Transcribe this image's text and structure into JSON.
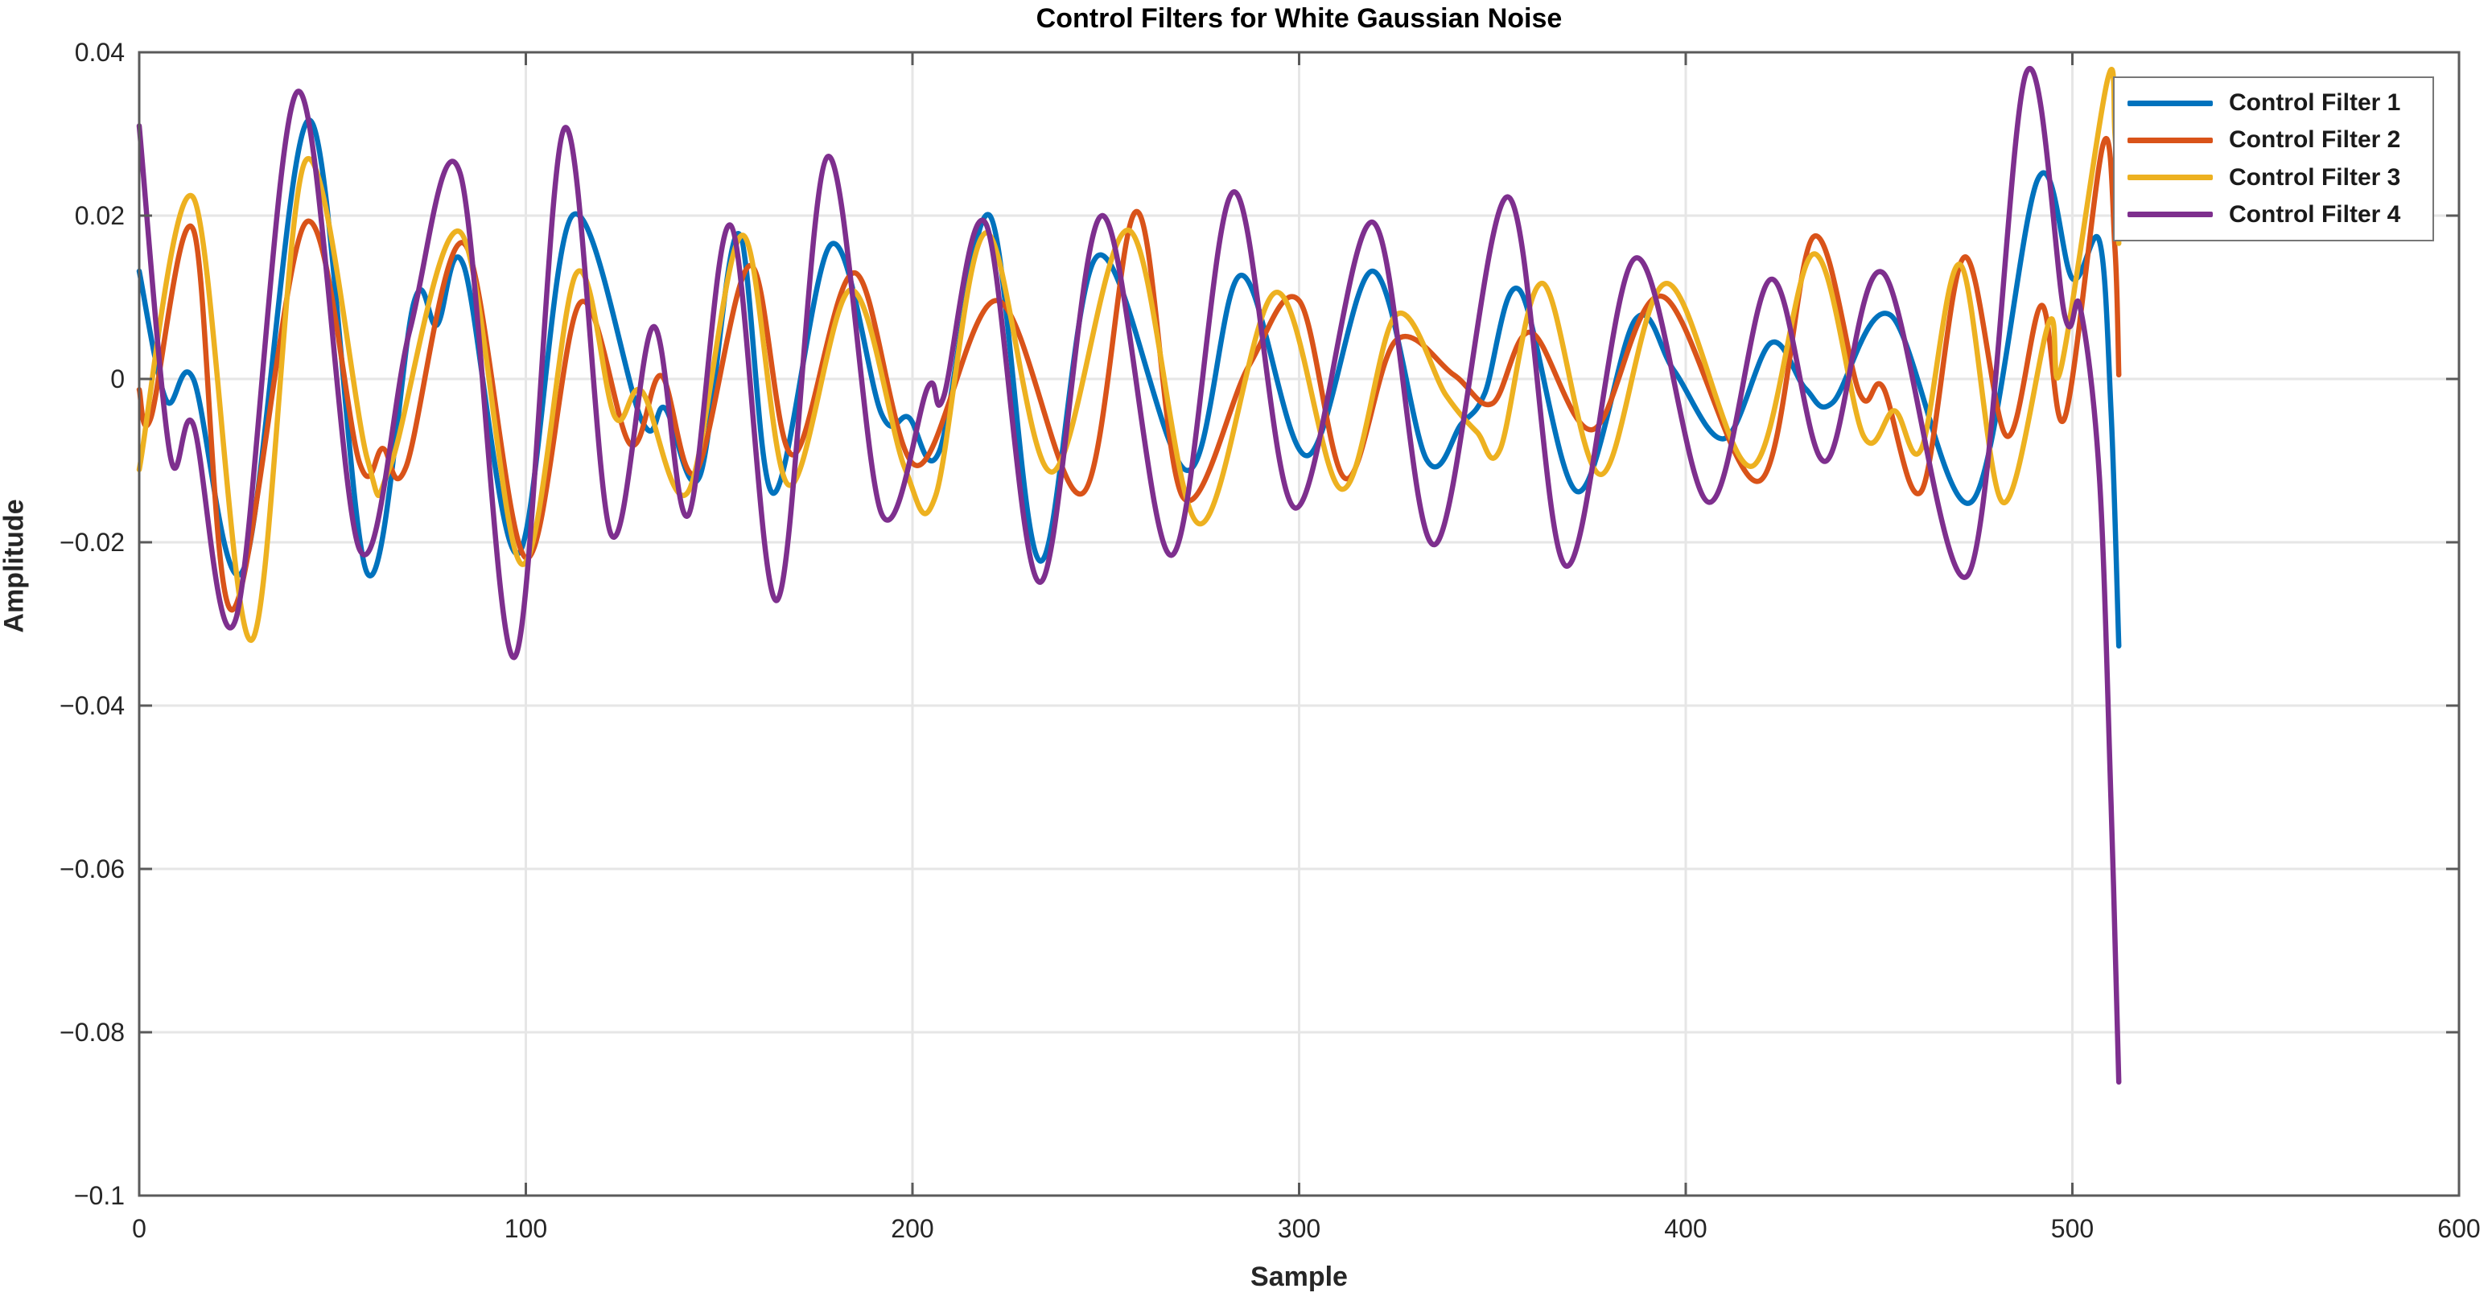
{
  "figure": {
    "title": "Control Filters for White Gaussian Noise",
    "xlabel": "Sample",
    "ylabel": "Amplitude"
  },
  "colors": {
    "series1": "#0072BD",
    "series2": "#D95319",
    "series3": "#EDB120",
    "series4": "#7E2F8E",
    "axis": "#5a5a5a",
    "grid": "#e6e6e6",
    "text": "#262626",
    "legend_border": "#777777",
    "background": "#ffffff"
  },
  "chart_data": {
    "type": "line",
    "title": "Control Filters for White Gaussian Noise",
    "xlabel": "Sample",
    "ylabel": "Amplitude",
    "xlim": [
      0,
      600
    ],
    "ylim": [
      -0.1,
      0.04
    ],
    "grid": true,
    "legend_position": "northeast",
    "x_ticks": [
      {
        "value": 0,
        "label": "0"
      },
      {
        "value": 100,
        "label": "100"
      },
      {
        "value": 200,
        "label": "200"
      },
      {
        "value": 300,
        "label": "300"
      },
      {
        "value": 400,
        "label": "400"
      },
      {
        "value": 500,
        "label": "500"
      },
      {
        "value": 600,
        "label": "600"
      }
    ],
    "y_ticks": [
      {
        "value": 0.04,
        "label": "0.04"
      },
      {
        "value": 0.02,
        "label": "0.02"
      },
      {
        "value": 0,
        "label": "0"
      },
      {
        "value": -0.02,
        "label": "−0.02"
      },
      {
        "value": -0.04,
        "label": "−0.04"
      },
      {
        "value": -0.06,
        "label": "−0.06"
      },
      {
        "value": -0.08,
        "label": "−0.08"
      },
      {
        "value": -0.1,
        "label": "−0.1"
      }
    ],
    "series": [
      {
        "name": "Control Filter 1",
        "color": "#0072BD",
        "points": [
          [
            0,
            0.0132
          ],
          [
            7,
            -0.0026
          ],
          [
            14,
            0.0
          ],
          [
            27,
            -0.0233
          ],
          [
            44,
            0.0317
          ],
          [
            59,
            -0.0238
          ],
          [
            71,
            0.0093
          ],
          [
            77,
            0.0066
          ],
          [
            84,
            0.0138
          ],
          [
            98,
            -0.0214
          ],
          [
            112,
            0.02
          ],
          [
            130,
            -0.0051
          ],
          [
            136,
            -0.0036
          ],
          [
            145,
            -0.0119
          ],
          [
            155,
            0.0178
          ],
          [
            164,
            -0.014
          ],
          [
            179,
            0.0165
          ],
          [
            192,
            -0.0043
          ],
          [
            199,
            -0.0047
          ],
          [
            207,
            -0.0088
          ],
          [
            220,
            0.02
          ],
          [
            233,
            -0.0223
          ],
          [
            248,
            0.0151
          ],
          [
            271,
            -0.0112
          ],
          [
            285,
            0.0127
          ],
          [
            302,
            -0.0094
          ],
          [
            319,
            0.0132
          ],
          [
            333,
            -0.0099
          ],
          [
            342,
            -0.0055
          ],
          [
            348,
            -0.0018
          ],
          [
            357,
            0.0109
          ],
          [
            372,
            -0.0138
          ],
          [
            387,
            0.0073
          ],
          [
            397,
            0.001
          ],
          [
            410,
            -0.0073
          ],
          [
            422,
            0.0044
          ],
          [
            431,
            -0.0012
          ],
          [
            438,
            -0.0029
          ],
          [
            453,
            0.0078
          ],
          [
            474,
            -0.015
          ],
          [
            491,
            0.0244
          ],
          [
            500,
            0.0123
          ],
          [
            507,
            0.0169
          ],
          [
            510,
            -0.004
          ],
          [
            512,
            -0.0327
          ]
        ]
      },
      {
        "name": "Control Filter 2",
        "color": "#D95319",
        "points": [
          [
            0,
            -0.0013
          ],
          [
            3,
            -0.0048
          ],
          [
            14,
            0.0183
          ],
          [
            24,
            -0.0283
          ],
          [
            43,
            0.0191
          ],
          [
            57,
            -0.0103
          ],
          [
            63,
            -0.0085
          ],
          [
            69,
            -0.0108
          ],
          [
            84,
            0.0166
          ],
          [
            100,
            -0.0219
          ],
          [
            114,
            0.0093
          ],
          [
            127,
            -0.008
          ],
          [
            135,
            0.0004
          ],
          [
            144,
            -0.0114
          ],
          [
            158,
            0.0139
          ],
          [
            169,
            -0.0093
          ],
          [
            185,
            0.013
          ],
          [
            201,
            -0.0106
          ],
          [
            222,
            0.0096
          ],
          [
            244,
            -0.014
          ],
          [
            258,
            0.0205
          ],
          [
            270,
            -0.0145
          ],
          [
            287,
            0.0016
          ],
          [
            300,
            0.0096
          ],
          [
            312,
            -0.0122
          ],
          [
            325,
            0.0047
          ],
          [
            340,
            0.0005
          ],
          [
            350,
            -0.003
          ],
          [
            360,
            0.0057
          ],
          [
            376,
            -0.0062
          ],
          [
            394,
            0.0101
          ],
          [
            419,
            -0.0125
          ],
          [
            433,
            0.0174
          ],
          [
            445,
            -0.0018
          ],
          [
            451,
            -0.001
          ],
          [
            461,
            -0.0137
          ],
          [
            472,
            0.0149
          ],
          [
            483,
            -0.007
          ],
          [
            492,
            0.009
          ],
          [
            498,
            -0.0048
          ],
          [
            508,
            0.0288
          ],
          [
            511,
            0.016
          ],
          [
            512,
            0.0005
          ]
        ]
      },
      {
        "name": "Control Filter 3",
        "color": "#EDB120",
        "points": [
          [
            0,
            -0.0111
          ],
          [
            14,
            0.0222
          ],
          [
            29,
            -0.032
          ],
          [
            43,
            0.0267
          ],
          [
            59,
            -0.0098
          ],
          [
            65,
            -0.0106
          ],
          [
            83,
            0.018
          ],
          [
            99,
            -0.0227
          ],
          [
            113,
            0.0129
          ],
          [
            123,
            -0.0046
          ],
          [
            130,
            -0.0015
          ],
          [
            142,
            -0.0138
          ],
          [
            156,
            0.0176
          ],
          [
            168,
            -0.013
          ],
          [
            184,
            0.0109
          ],
          [
            198,
            -0.0109
          ],
          [
            206,
            -0.0143
          ],
          [
            219,
            0.0179
          ],
          [
            236,
            -0.0114
          ],
          [
            256,
            0.0182
          ],
          [
            274,
            -0.0177
          ],
          [
            294,
            0.0106
          ],
          [
            311,
            -0.0135
          ],
          [
            325,
            0.0078
          ],
          [
            338,
            -0.002
          ],
          [
            346,
            -0.0065
          ],
          [
            352,
            -0.0086
          ],
          [
            363,
            0.0117
          ],
          [
            378,
            -0.0117
          ],
          [
            395,
            0.0117
          ],
          [
            417,
            -0.0107
          ],
          [
            433,
            0.0153
          ],
          [
            446,
            -0.007
          ],
          [
            454,
            -0.0039
          ],
          [
            461,
            -0.0085
          ],
          [
            471,
            0.014
          ],
          [
            482,
            -0.0151
          ],
          [
            494,
            0.007
          ],
          [
            497,
            0.0012
          ],
          [
            509,
            0.0364
          ],
          [
            511,
            0.03
          ],
          [
            512,
            0.0166
          ]
        ]
      },
      {
        "name": "Control Filter 4",
        "color": "#7E2F8E",
        "points": [
          [
            0,
            0.031
          ],
          [
            8,
            -0.0093
          ],
          [
            14,
            -0.0056
          ],
          [
            25,
            -0.0294
          ],
          [
            41,
            0.0352
          ],
          [
            57,
            -0.0209
          ],
          [
            70,
            0.006
          ],
          [
            83,
            0.0252
          ],
          [
            97,
            -0.0341
          ],
          [
            110,
            0.0307
          ],
          [
            122,
            -0.019
          ],
          [
            133,
            0.0064
          ],
          [
            142,
            -0.0167
          ],
          [
            153,
            0.0188
          ],
          [
            165,
            -0.0271
          ],
          [
            178,
            0.0272
          ],
          [
            192,
            -0.0165
          ],
          [
            204,
            -0.001
          ],
          [
            208,
            -0.0023
          ],
          [
            219,
            0.019
          ],
          [
            233,
            -0.0249
          ],
          [
            249,
            0.02
          ],
          [
            267,
            -0.0216
          ],
          [
            283,
            0.0229
          ],
          [
            299,
            -0.0158
          ],
          [
            319,
            0.0192
          ],
          [
            335,
            -0.0203
          ],
          [
            354,
            0.0223
          ],
          [
            369,
            -0.0229
          ],
          [
            387,
            0.0148
          ],
          [
            406,
            -0.0151
          ],
          [
            422,
            0.0122
          ],
          [
            436,
            -0.0101
          ],
          [
            451,
            0.013
          ],
          [
            473,
            -0.024
          ],
          [
            488,
            0.0374
          ],
          [
            498,
            0.0078
          ],
          [
            502,
            0.0088
          ],
          [
            507,
            -0.012
          ],
          [
            510,
            -0.052
          ],
          [
            512,
            -0.0861
          ]
        ]
      }
    ]
  }
}
